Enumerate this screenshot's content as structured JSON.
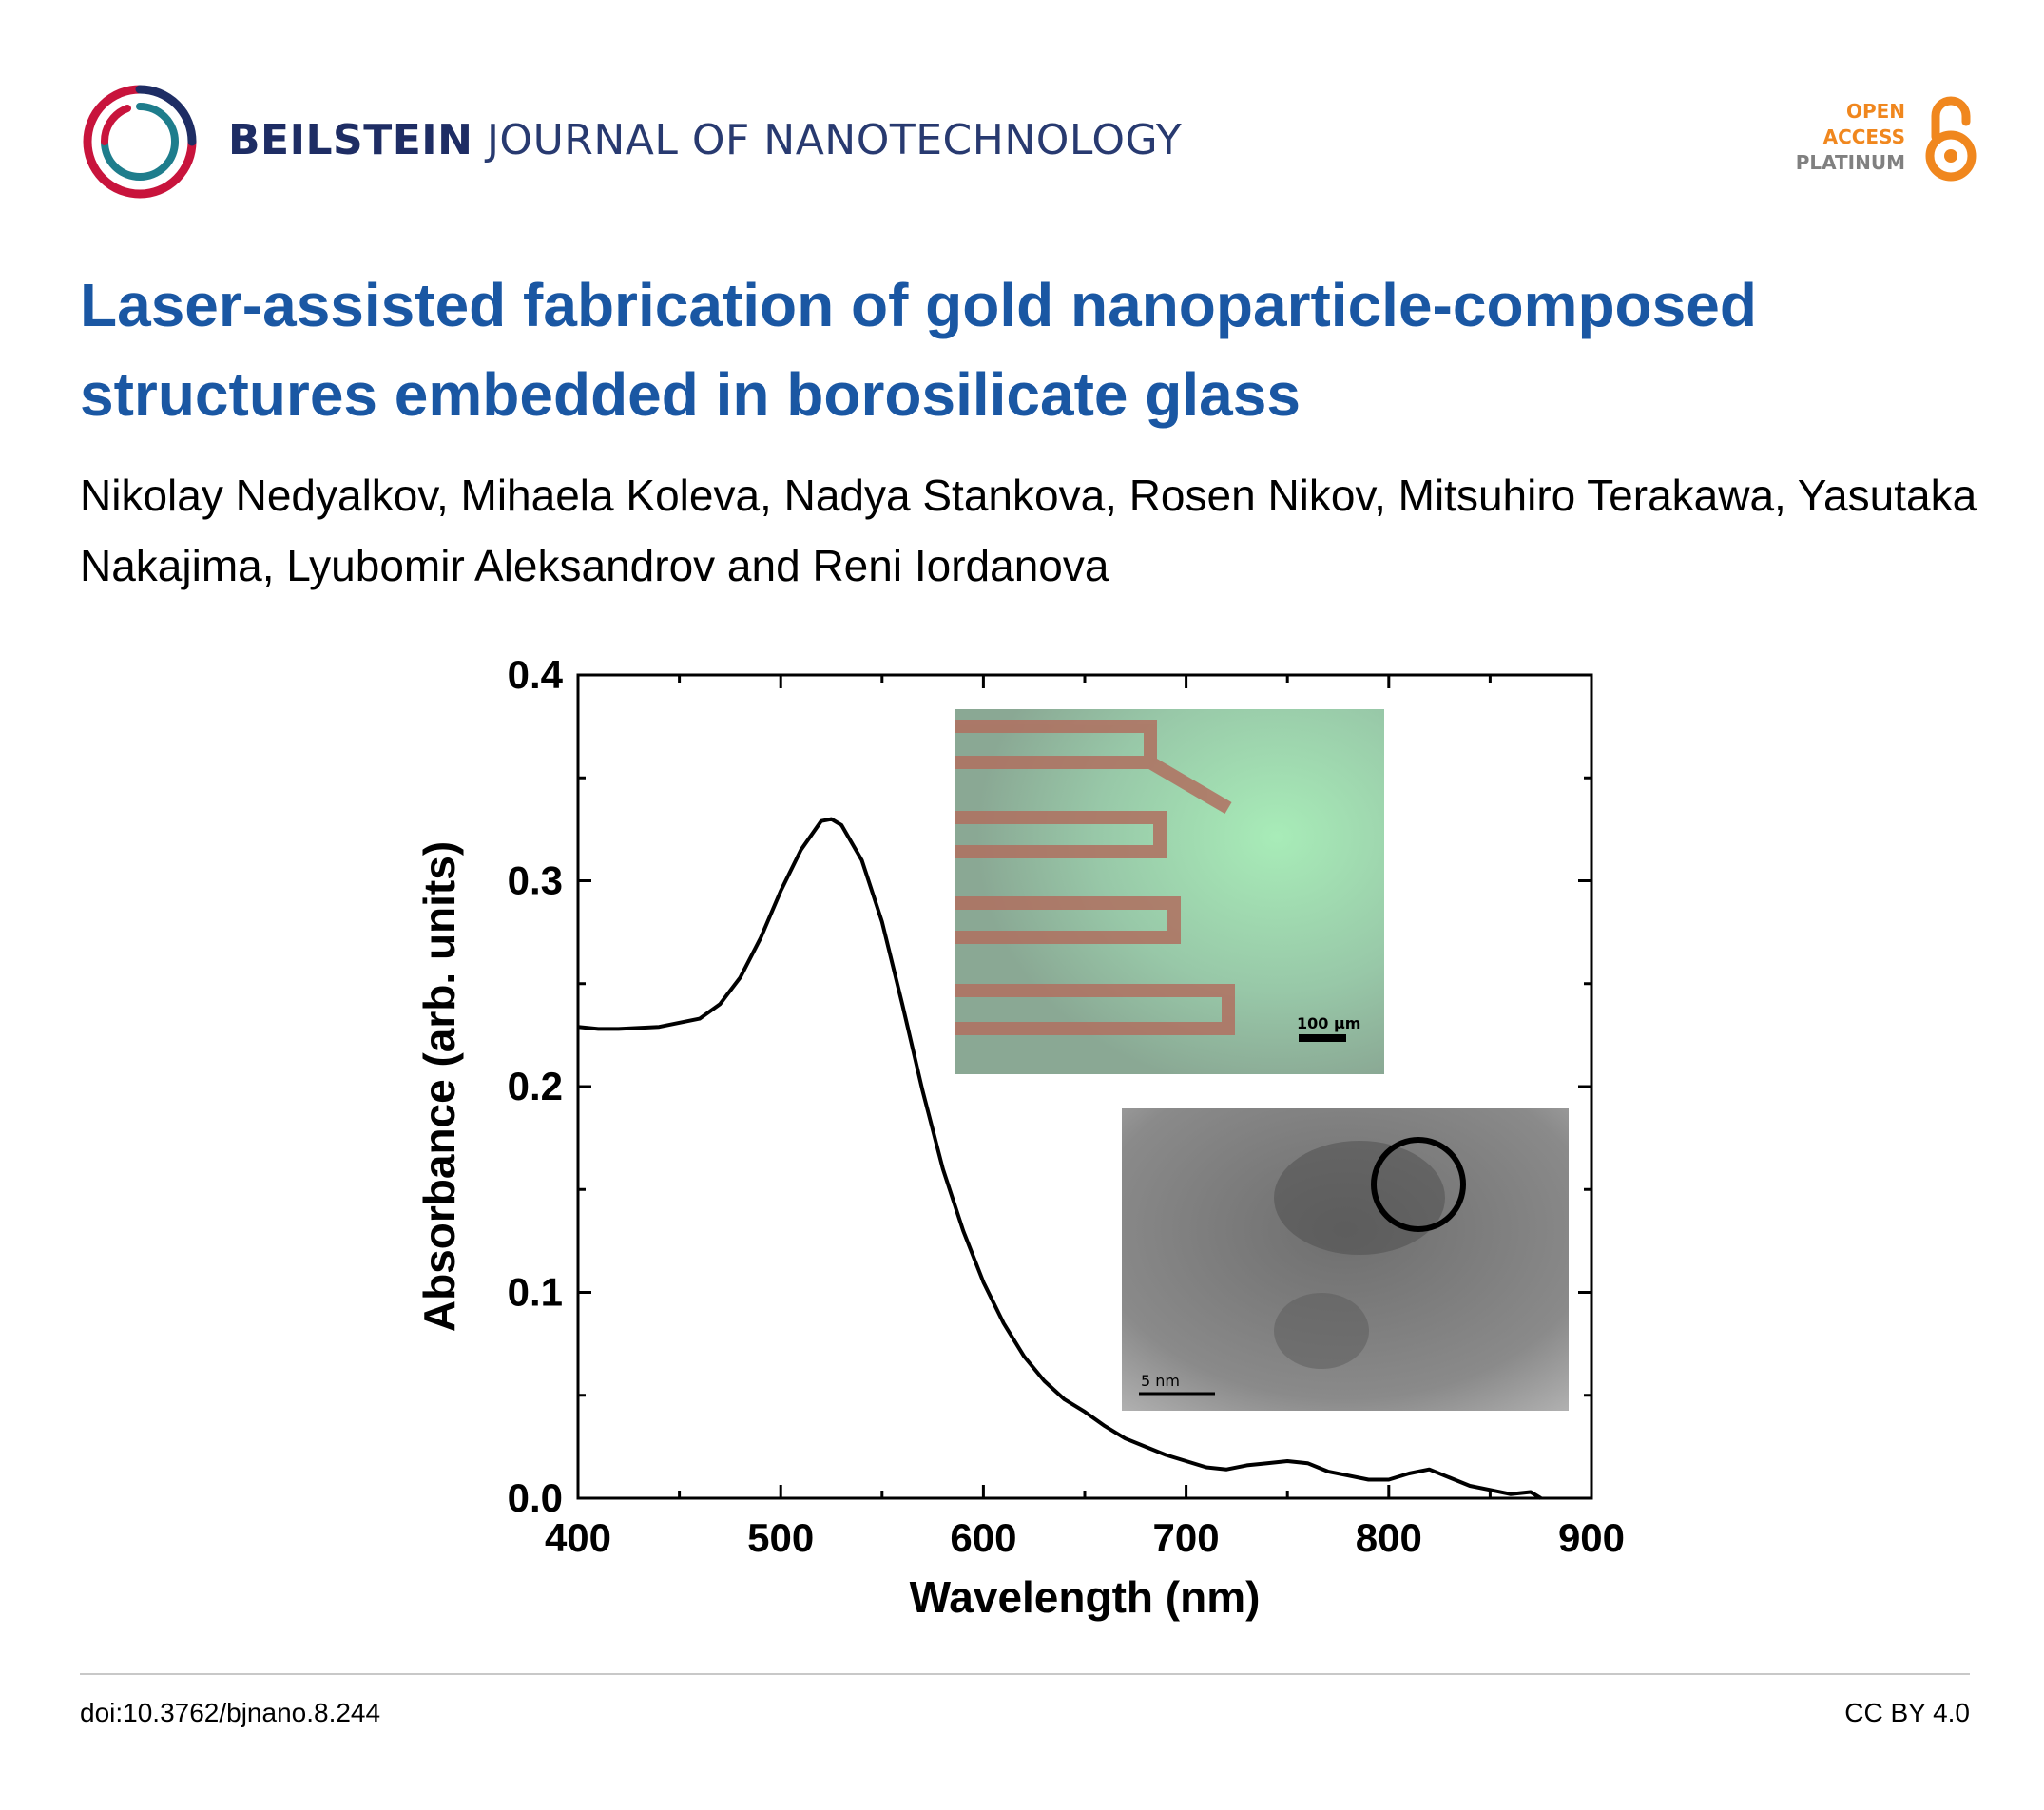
{
  "header": {
    "journal_bold": "BEILSTEIN",
    "journal_rest": " JOURNAL OF NANOTECHNOLOGY",
    "oa_line1": "OPEN",
    "oa_line2": "ACCESS",
    "oa_line3": "PLATINUM",
    "colors": {
      "brand_blue": "#1e2d64",
      "oa_orange": "#f0871e",
      "logo_red": "#c8143c",
      "logo_teal": "#1e7d8c"
    }
  },
  "article": {
    "title": "Laser-assisted fabrication of gold nanoparticle-composed structures embedded in borosilicate glass",
    "authors": "Nikolay Nedyalkov, Mihaela Koleva, Nadya Stankova, Rosen Nikov, Mitsuhiro Terakawa, Yasutaka Nakajima, Lyubomir Aleksandrov and Reni Iordanova"
  },
  "footer": {
    "doi": "doi:10.3762/bjnano.8.244",
    "license": "CC BY 4.0"
  },
  "chart_data": {
    "type": "line",
    "xlabel": "Wavelength (nm)",
    "ylabel": "Absorbance (arb. units)",
    "xlim": [
      400,
      900
    ],
    "ylim": [
      0.0,
      0.4
    ],
    "xticks": [
      "400",
      "500",
      "600",
      "700",
      "800",
      "900"
    ],
    "yticks": [
      "0.0",
      "0.1",
      "0.2",
      "0.3",
      "0.4"
    ],
    "grid": false,
    "series": [
      {
        "color": "#000000",
        "x": [
          400,
          410,
          420,
          440,
          460,
          470,
          480,
          490,
          500,
          510,
          520,
          525,
          530,
          540,
          550,
          560,
          570,
          580,
          590,
          600,
          610,
          620,
          630,
          640,
          650,
          660,
          670,
          680,
          690,
          700,
          710,
          720,
          730,
          740,
          750,
          760,
          770,
          780,
          790,
          800,
          810,
          820,
          830,
          840,
          850,
          860,
          870,
          875
        ],
        "y": [
          0.229,
          0.228,
          0.228,
          0.229,
          0.233,
          0.24,
          0.253,
          0.272,
          0.295,
          0.315,
          0.329,
          0.33,
          0.327,
          0.31,
          0.28,
          0.24,
          0.198,
          0.16,
          0.13,
          0.105,
          0.085,
          0.069,
          0.057,
          0.048,
          0.042,
          0.035,
          0.029,
          0.025,
          0.021,
          0.018,
          0.015,
          0.014,
          0.016,
          0.017,
          0.018,
          0.017,
          0.013,
          0.011,
          0.009,
          0.009,
          0.012,
          0.014,
          0.01,
          0.006,
          0.004,
          0.002,
          0.003,
          0.0
        ]
      }
    ],
    "insets": [
      {
        "kind": "optical-micrograph",
        "scale_label": "100 µm"
      },
      {
        "kind": "tem-micrograph",
        "scale_label": "5 nm"
      }
    ]
  }
}
